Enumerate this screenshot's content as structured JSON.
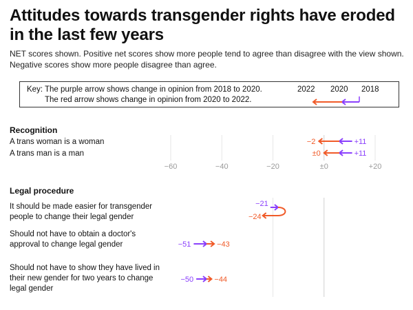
{
  "title": "Attitudes towards transgender rights have eroded in the last few years",
  "subtitle": "NET scores shown. Positive net scores show more people tend to agree than disagree with the view shown. Negative scores show more people disagree than agree.",
  "key": {
    "line1": "Key: The purple arrow shows change in opinion from 2018 to 2020.",
    "line2": "The red arrow shows change in opinion from 2020 to 2022.",
    "year_2022": "2022",
    "year_2020": "2020",
    "year_2018": "2018"
  },
  "colors": {
    "purple": "#8a3ffc",
    "red": "#f05a28",
    "grid": "#e6e6e6",
    "zero": "#cfcfcf"
  },
  "chart_data": {
    "type": "arrow-dot",
    "title": "Attitudes towards transgender rights have eroded in the last few years",
    "xlim": [
      -60,
      20
    ],
    "ticks": [
      -60,
      -40,
      -20,
      0,
      20
    ],
    "tick_labels": [
      "−60",
      "−40",
      "−20",
      "±0",
      "+20"
    ],
    "series": [
      {
        "name": "2018 to 2020",
        "color": "purple"
      },
      {
        "name": "2020 to 2022",
        "color": "red"
      }
    ],
    "groups": [
      {
        "name": "Recognition",
        "items": [
          {
            "label": "A trans woman is a woman",
            "y2018": 11,
            "y2020": 6,
            "y2022": -2,
            "label2018": "+11",
            "label2022": "−2"
          },
          {
            "label": "A trans man is a man",
            "y2018": 11,
            "y2020": 6,
            "y2022": 0,
            "label2018": "+11",
            "label2022": "±0"
          }
        ]
      },
      {
        "name": "Legal procedure",
        "items": [
          {
            "label": "It should be made easier for transgender people to change their legal gender",
            "y2018": -21,
            "y2020": -18,
            "y2022": -24,
            "label2018": "−21",
            "label2022": "−24"
          },
          {
            "label": "Should not have to obtain a doctor's approval to change legal gender",
            "y2018": -51,
            "y2020": -46,
            "y2022": -43,
            "label2018": "−51",
            "label2022": "−43"
          },
          {
            "label": "Should not have to show they have lived in their new gender for two years to change legal gender",
            "y2018": -50,
            "y2020": -46,
            "y2022": -44,
            "label2018": "−50",
            "label2022": "−44"
          }
        ]
      }
    ]
  }
}
